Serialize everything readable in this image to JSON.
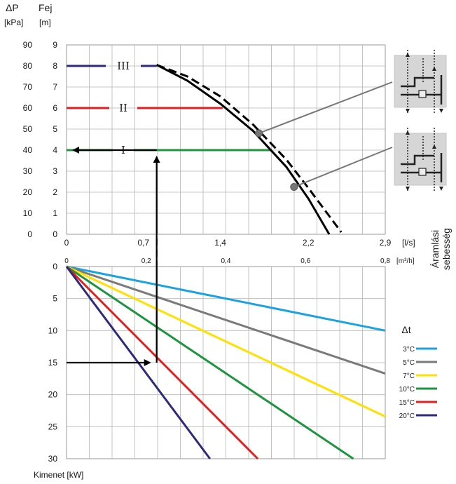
{
  "header": {
    "dp_label": "ΔP",
    "dp_unit": "[kPa]",
    "head_label": "Fej",
    "head_unit": "[m]"
  },
  "side_label": {
    "line1": "Áramlási",
    "line2": "sebesség"
  },
  "footer": {
    "output_label": "Kimenet [kW]"
  },
  "legend": {
    "title": "Δt"
  },
  "chart_data": [
    {
      "type": "line",
      "name": "pump-curves",
      "y_kpa_ticks": [
        "90",
        "80",
        "70",
        "60",
        "50",
        "40",
        "30",
        "20",
        "10",
        "0"
      ],
      "y_m_ticks": [
        "9",
        "8",
        "7",
        "6",
        "5",
        "4",
        "3",
        "2",
        "1",
        "0"
      ],
      "ylim_m": [
        0,
        9
      ],
      "x_ls_ticks": [
        {
          "v": 0,
          "t": "0"
        },
        {
          "v": 0.7,
          "t": "0,7"
        },
        {
          "v": 1.4,
          "t": "1,4"
        },
        {
          "v": 2.2,
          "t": "2,2"
        },
        {
          "v": 2.9,
          "t": "2,9"
        }
      ],
      "x_ls_unit": "[l/s]",
      "x_m3h_ticks": [
        {
          "v": 0,
          "t": "0"
        },
        {
          "v": 0.2,
          "t": "0,2"
        },
        {
          "v": 0.4,
          "t": "0,4"
        },
        {
          "v": 0.6,
          "t": "0,6"
        },
        {
          "v": 0.8,
          "t": "0,8"
        }
      ],
      "x_m3h_unit": "[m³/h]",
      "xlim_ls": [
        0,
        2.9
      ],
      "speed_levels": [
        {
          "label": "III",
          "head_m": 8,
          "color": "#2e2a7c",
          "end_flow": 0.82
        },
        {
          "label": "II",
          "head_m": 6,
          "color": "#e02020",
          "end_flow": 1.42
        },
        {
          "label": "I",
          "head_m": 4,
          "color": "#1f9440",
          "end_flow": 1.86
        }
      ],
      "curve_solid": {
        "flow_ls": [
          0.82,
          1.1,
          1.4,
          1.7,
          2.0,
          2.2,
          2.39
        ],
        "head_m": [
          8.05,
          7.3,
          6.2,
          4.9,
          3.2,
          1.7,
          0
        ]
      },
      "curve_dashed": {
        "flow_ls": [
          0.82,
          1.1,
          1.4,
          1.7,
          2.0,
          2.2,
          2.5
        ],
        "head_m": [
          8.05,
          7.5,
          6.55,
          5.2,
          3.55,
          2.2,
          0.1
        ]
      },
      "markers": [
        {
          "flow_ls": 1.75,
          "head_m": 4.8
        },
        {
          "flow_ls": 2.07,
          "head_m": 2.25
        }
      ]
    },
    {
      "type": "line",
      "name": "output-lines",
      "y_ticks": [
        "0",
        "5",
        "10",
        "15",
        "20",
        "25",
        "30"
      ],
      "ylim": [
        0,
        30
      ],
      "series": [
        {
          "name": "3°C",
          "color": "#1aa3e0",
          "end_m3h": 0.8,
          "end_kw": 10
        },
        {
          "name": "5°C",
          "color": "#7a7a7a",
          "end_m3h": 0.8,
          "end_kw": 16.7
        },
        {
          "name": "7°C",
          "color": "#ffe000",
          "end_m3h": 0.8,
          "end_kw": 23.4
        },
        {
          "name": "10°C",
          "color": "#1f9440",
          "end_m3h": 0.72,
          "end_kw": 30
        },
        {
          "name": "15°C",
          "color": "#e02020",
          "end_m3h": 0.48,
          "end_kw": 30
        },
        {
          "name": "20°C",
          "color": "#2e2a7c",
          "end_m3h": 0.36,
          "end_kw": 30
        }
      ]
    }
  ],
  "example_path": {
    "flow_ls": 0.82,
    "head_m": 4,
    "output_kw": 15
  }
}
